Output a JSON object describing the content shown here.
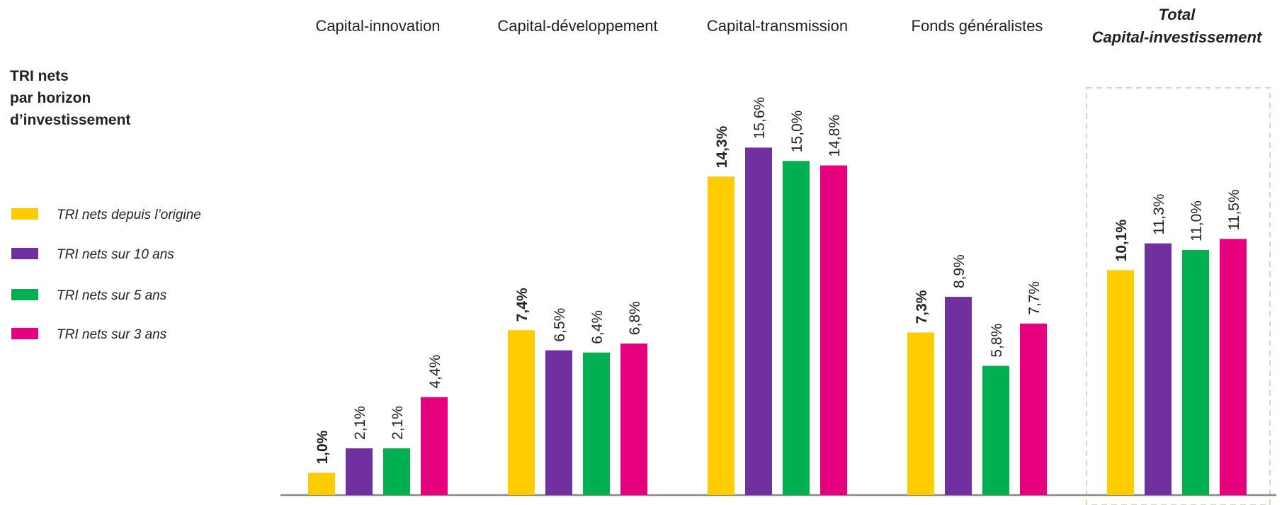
{
  "chart_data": {
    "type": "bar",
    "title": [
      "TRI nets",
      "par horizon",
      "d’investissement"
    ],
    "categories": [
      "Capital-innovation",
      "Capital-développement",
      "Capital-transmission",
      "Fonds généralistes",
      [
        "Total",
        "Capital-investissement"
      ]
    ],
    "series": [
      {
        "name": "TRI nets depuis l’origine",
        "color": "#FFCC00",
        "values": [
          1.0,
          7.4,
          14.3,
          7.3,
          10.1
        ],
        "value_labels": [
          "1,0%",
          "7,4%",
          "14,3%",
          "7,3%",
          "10,1%"
        ]
      },
      {
        "name": "TRI nets sur 10 ans",
        "color": "#7030A0",
        "values": [
          2.1,
          6.5,
          15.6,
          8.9,
          11.3
        ],
        "value_labels": [
          "2,1%",
          "6,5%",
          "15,6%",
          "8,9%",
          "11,3%"
        ]
      },
      {
        "name": "TRI nets sur 5 ans",
        "color": "#00B050",
        "values": [
          2.1,
          6.4,
          15.0,
          5.8,
          11.0
        ],
        "value_labels": [
          "2,1%",
          "6,4%",
          "15,0%",
          "5,8%",
          "11,0%"
        ]
      },
      {
        "name": "TRI nets sur 3 ans",
        "color": "#E6007E",
        "values": [
          4.4,
          6.8,
          14.8,
          7.7,
          11.5
        ],
        "value_labels": [
          "4,4%",
          "6,8%",
          "14,8%",
          "7,7%",
          "11,5%"
        ]
      }
    ],
    "legend": "left"
  }
}
